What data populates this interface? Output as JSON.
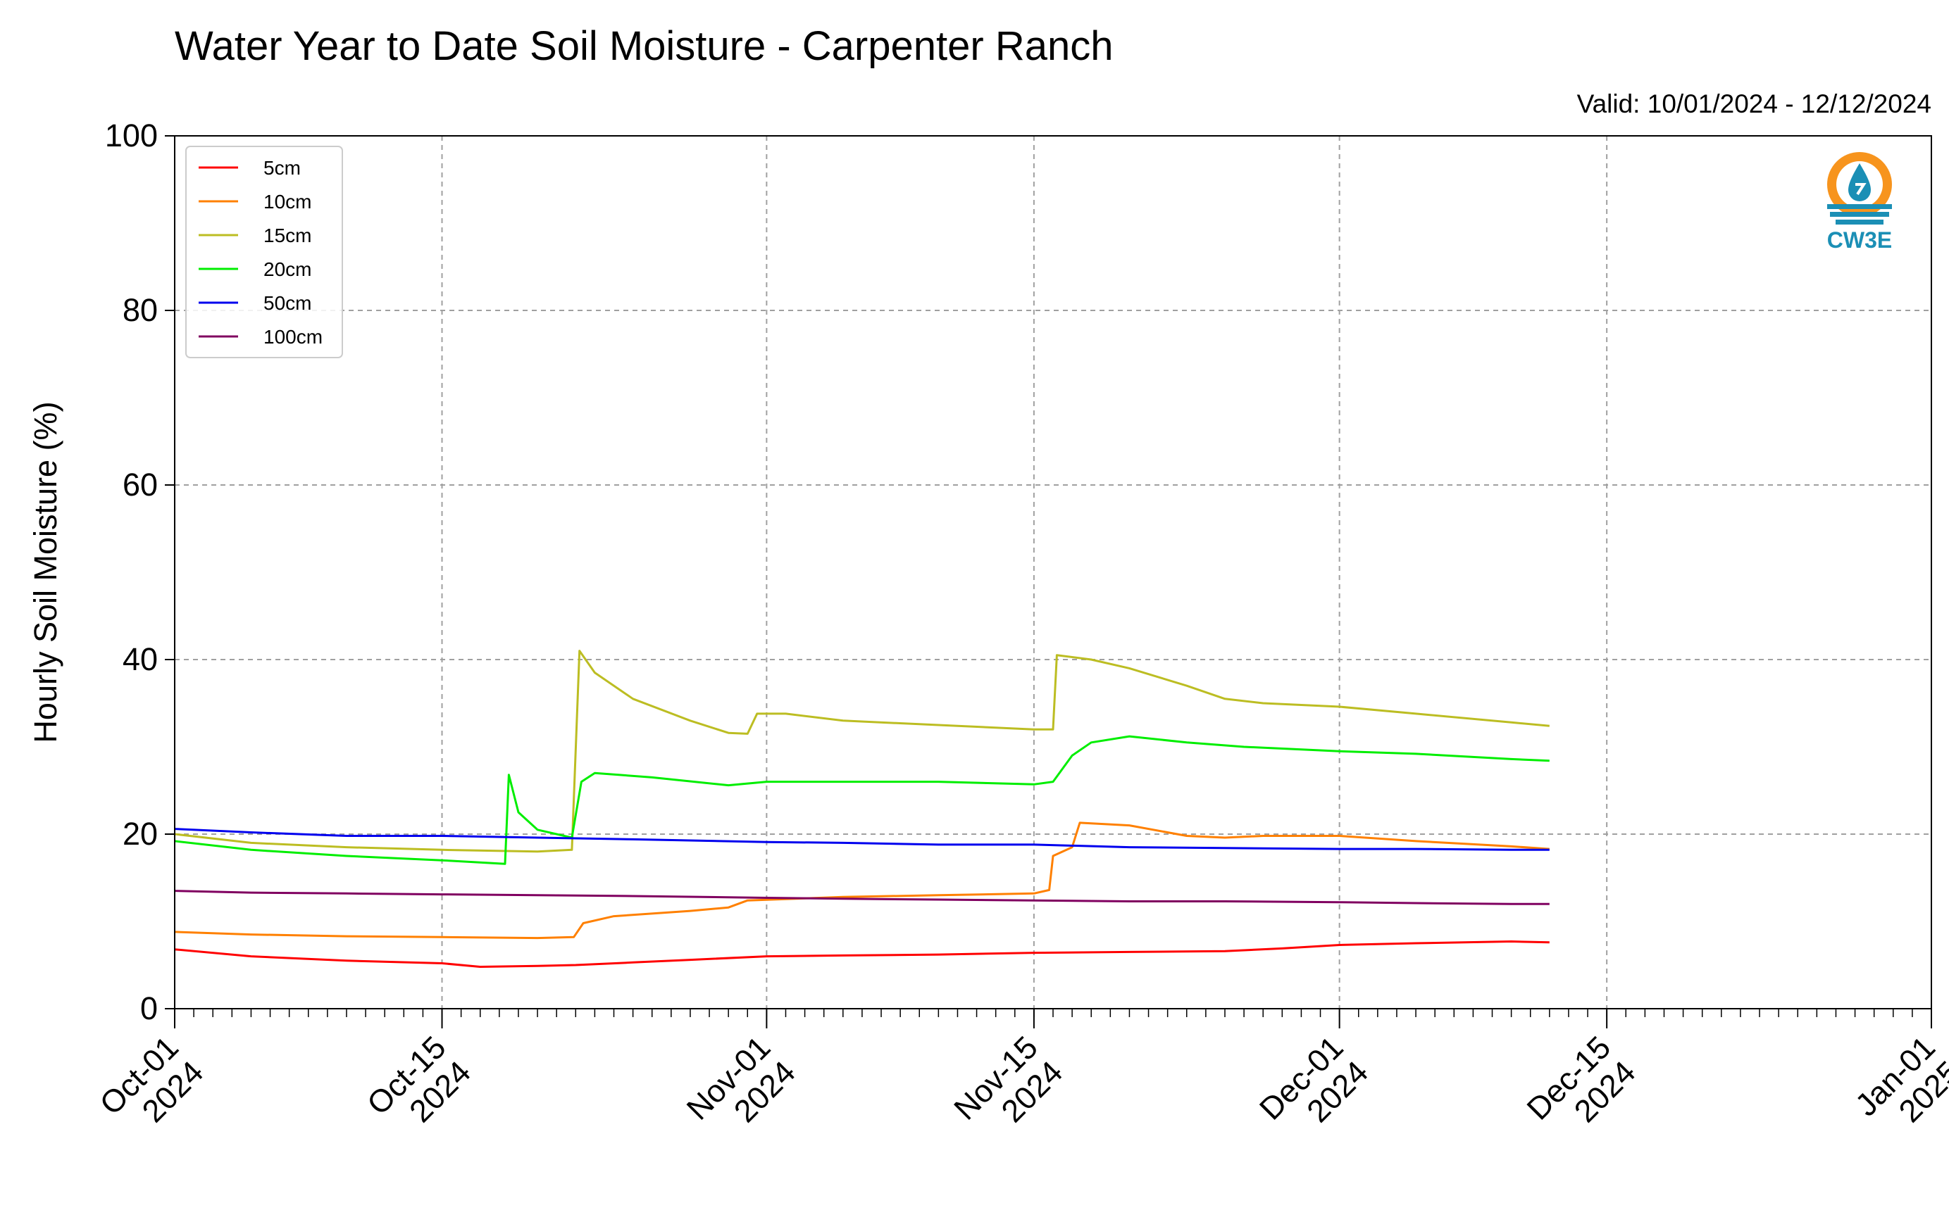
{
  "chart_data": {
    "type": "line",
    "title": "Water Year to Date Soil Moisture - Carpenter Ranch",
    "subtitle": "Valid: 10/01/2024 - 12/12/2024",
    "xlabel": "",
    "ylabel": "Hourly Soil Moisture (%)",
    "ylim": [
      0,
      100
    ],
    "xlim": [
      "2024-10-01",
      "2025-01-01"
    ],
    "grid": true,
    "legend_position": "upper-left",
    "x_ticks": [
      {
        "date": "2024-10-01",
        "label": [
          "Oct-01",
          "2024"
        ]
      },
      {
        "date": "2024-10-15",
        "label": [
          "Oct-15",
          "2024"
        ]
      },
      {
        "date": "2024-11-01",
        "label": [
          "Nov-01",
          "2024"
        ]
      },
      {
        "date": "2024-11-15",
        "label": [
          "Nov-15",
          "2024"
        ]
      },
      {
        "date": "2024-12-01",
        "label": [
          "Dec-01",
          "2024"
        ]
      },
      {
        "date": "2024-12-15",
        "label": [
          "Dec-15",
          "2024"
        ]
      },
      {
        "date": "2025-01-01",
        "label": [
          "Jan-01",
          "2025"
        ]
      }
    ],
    "y_ticks": [
      0,
      20,
      40,
      60,
      80,
      100
    ],
    "series": [
      {
        "name": "5cm",
        "color": "#ff0000",
        "points": [
          [
            "2024-10-01",
            6.8
          ],
          [
            "2024-10-05",
            6.0
          ],
          [
            "2024-10-10",
            5.5
          ],
          [
            "2024-10-15",
            5.2
          ],
          [
            "2024-10-17",
            4.8
          ],
          [
            "2024-10-20",
            4.9
          ],
          [
            "2024-10-22",
            5.0
          ],
          [
            "2024-10-25",
            5.3
          ],
          [
            "2024-10-28",
            5.6
          ],
          [
            "2024-11-01",
            6.0
          ],
          [
            "2024-11-05",
            6.1
          ],
          [
            "2024-11-10",
            6.2
          ],
          [
            "2024-11-15",
            6.4
          ],
          [
            "2024-11-20",
            6.5
          ],
          [
            "2024-11-25",
            6.6
          ],
          [
            "2024-11-28",
            6.9
          ],
          [
            "2024-12-01",
            7.3
          ],
          [
            "2024-12-05",
            7.5
          ],
          [
            "2024-12-10",
            7.7
          ],
          [
            "2024-12-12",
            7.6
          ]
        ]
      },
      {
        "name": "10cm",
        "color": "#ff8000",
        "points": [
          [
            "2024-10-01",
            8.8
          ],
          [
            "2024-10-05",
            8.5
          ],
          [
            "2024-10-10",
            8.3
          ],
          [
            "2024-10-15",
            8.2
          ],
          [
            "2024-10-20",
            8.1
          ],
          [
            "2024-10-21.9",
            8.2
          ],
          [
            "2024-10-22.4",
            9.8
          ],
          [
            "2024-10-24",
            10.6
          ],
          [
            "2024-10-28",
            11.2
          ],
          [
            "2024-10-30",
            11.6
          ],
          [
            "2024-10-31",
            12.4
          ],
          [
            "2024-11-05",
            12.8
          ],
          [
            "2024-11-10",
            13.0
          ],
          [
            "2024-11-15",
            13.2
          ],
          [
            "2024-11-15.8",
            13.6
          ],
          [
            "2024-11-16.0",
            17.5
          ],
          [
            "2024-11-17",
            18.5
          ],
          [
            "2024-11-17.4",
            21.3
          ],
          [
            "2024-11-20",
            21.0
          ],
          [
            "2024-11-23",
            19.8
          ],
          [
            "2024-11-25",
            19.6
          ],
          [
            "2024-11-27",
            19.8
          ],
          [
            "2024-12-01",
            19.8
          ],
          [
            "2024-12-05",
            19.2
          ],
          [
            "2024-12-10",
            18.6
          ],
          [
            "2024-12-12",
            18.3
          ]
        ]
      },
      {
        "name": "15cm",
        "color": "#bcbd22",
        "points": [
          [
            "2024-10-01",
            20.0
          ],
          [
            "2024-10-05",
            19.0
          ],
          [
            "2024-10-10",
            18.5
          ],
          [
            "2024-10-15",
            18.2
          ],
          [
            "2024-10-20",
            18.0
          ],
          [
            "2024-10-21.8",
            18.2
          ],
          [
            "2024-10-22.2",
            41.0
          ],
          [
            "2024-10-23",
            38.5
          ],
          [
            "2024-10-25",
            35.5
          ],
          [
            "2024-10-28",
            33.0
          ],
          [
            "2024-10-30",
            31.6
          ],
          [
            "2024-10-31",
            31.5
          ],
          [
            "2024-10-31.5",
            33.8
          ],
          [
            "2024-11-02",
            33.8
          ],
          [
            "2024-11-05",
            33.0
          ],
          [
            "2024-11-10",
            32.5
          ],
          [
            "2024-11-15",
            32.0
          ],
          [
            "2024-11-16.0",
            32.0
          ],
          [
            "2024-11-16.2",
            40.5
          ],
          [
            "2024-11-18",
            40.0
          ],
          [
            "2024-11-20",
            39.0
          ],
          [
            "2024-11-23",
            37.0
          ],
          [
            "2024-11-25",
            35.5
          ],
          [
            "2024-11-27",
            35.0
          ],
          [
            "2024-12-01",
            34.6
          ],
          [
            "2024-12-05",
            33.8
          ],
          [
            "2024-12-10",
            32.8
          ],
          [
            "2024-12-12",
            32.4
          ]
        ]
      },
      {
        "name": "20cm",
        "color": "#00ee00",
        "points": [
          [
            "2024-10-01",
            19.2
          ],
          [
            "2024-10-05",
            18.2
          ],
          [
            "2024-10-10",
            17.5
          ],
          [
            "2024-10-15",
            17.0
          ],
          [
            "2024-10-18.3",
            16.6
          ],
          [
            "2024-10-18.5",
            26.8
          ],
          [
            "2024-10-19",
            22.5
          ],
          [
            "2024-10-20",
            20.5
          ],
          [
            "2024-10-21.8",
            19.6
          ],
          [
            "2024-10-22.3",
            26.0
          ],
          [
            "2024-10-23",
            27.0
          ],
          [
            "2024-10-26",
            26.5
          ],
          [
            "2024-10-30",
            25.6
          ],
          [
            "2024-11-01",
            26.0
          ],
          [
            "2024-11-05",
            26.0
          ],
          [
            "2024-11-10",
            26.0
          ],
          [
            "2024-11-15",
            25.7
          ],
          [
            "2024-11-16.0",
            26.0
          ],
          [
            "2024-11-17",
            29.0
          ],
          [
            "2024-11-18",
            30.5
          ],
          [
            "2024-11-20",
            31.2
          ],
          [
            "2024-11-23",
            30.5
          ],
          [
            "2024-11-26",
            30.0
          ],
          [
            "2024-12-01",
            29.5
          ],
          [
            "2024-12-05",
            29.2
          ],
          [
            "2024-12-10",
            28.6
          ],
          [
            "2024-12-12",
            28.4
          ]
        ]
      },
      {
        "name": "50cm",
        "color": "#0000ee",
        "points": [
          [
            "2024-10-01",
            20.6
          ],
          [
            "2024-10-05",
            20.2
          ],
          [
            "2024-10-10",
            19.8
          ],
          [
            "2024-10-15",
            19.8
          ],
          [
            "2024-10-20",
            19.6
          ],
          [
            "2024-10-25",
            19.4
          ],
          [
            "2024-11-01",
            19.1
          ],
          [
            "2024-11-05",
            19.0
          ],
          [
            "2024-11-10",
            18.8
          ],
          [
            "2024-11-15",
            18.8
          ],
          [
            "2024-11-20",
            18.5
          ],
          [
            "2024-11-25",
            18.4
          ],
          [
            "2024-12-01",
            18.3
          ],
          [
            "2024-12-05",
            18.3
          ],
          [
            "2024-12-10",
            18.2
          ],
          [
            "2024-12-12",
            18.2
          ]
        ]
      },
      {
        "name": "100cm",
        "color": "#800060",
        "points": [
          [
            "2024-10-01",
            13.5
          ],
          [
            "2024-10-05",
            13.3
          ],
          [
            "2024-10-10",
            13.2
          ],
          [
            "2024-10-15",
            13.1
          ],
          [
            "2024-10-20",
            13.0
          ],
          [
            "2024-10-25",
            12.9
          ],
          [
            "2024-11-01",
            12.7
          ],
          [
            "2024-11-05",
            12.6
          ],
          [
            "2024-11-10",
            12.5
          ],
          [
            "2024-11-15",
            12.4
          ],
          [
            "2024-11-20",
            12.3
          ],
          [
            "2024-11-25",
            12.3
          ],
          [
            "2024-12-01",
            12.2
          ],
          [
            "2024-12-05",
            12.1
          ],
          [
            "2024-12-10",
            12.0
          ],
          [
            "2024-12-12",
            12.0
          ]
        ]
      }
    ]
  },
  "logo": {
    "text": "CW3E",
    "colors": {
      "orange": "#f7941d",
      "teal": "#1b8fb5"
    }
  }
}
